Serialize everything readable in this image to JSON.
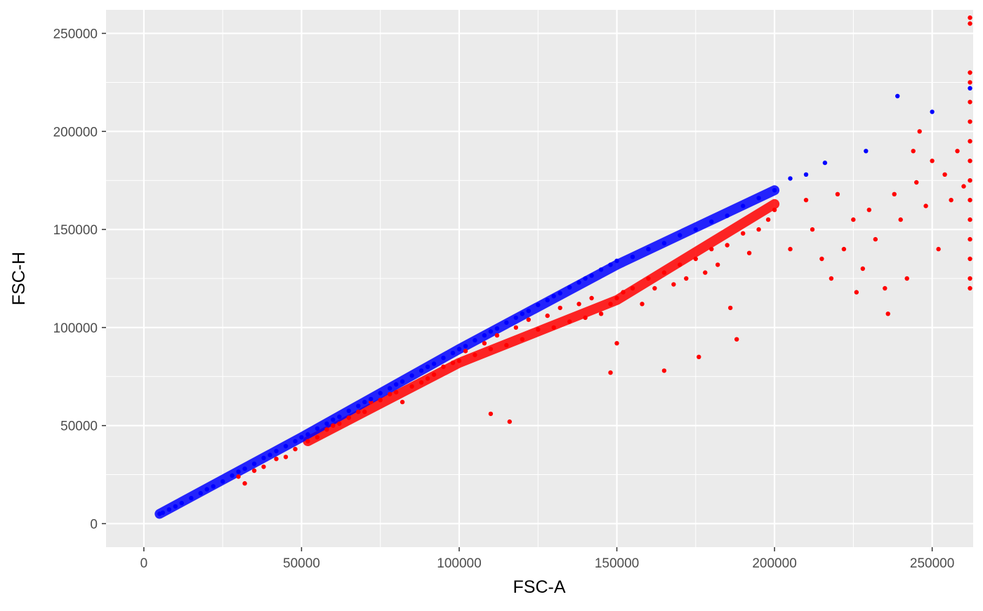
{
  "chart_data": {
    "type": "scatter",
    "title": "",
    "xlabel": "FSC-A",
    "ylabel": "FSC-H",
    "xlim": [
      -12000,
      263000
    ],
    "ylim": [
      -12000,
      262000
    ],
    "x_ticks": [
      0,
      50000,
      100000,
      150000,
      200000,
      250000
    ],
    "y_ticks": [
      0,
      50000,
      100000,
      150000,
      200000,
      250000
    ],
    "x_tick_labels": [
      "0",
      "50000",
      "100000",
      "150000",
      "200000",
      "250000"
    ],
    "y_tick_labels": [
      "0",
      "50000",
      "100000",
      "150000",
      "200000",
      "250000"
    ],
    "grid": true,
    "background": "#EBEBEB",
    "grid_color": "#FFFFFF",
    "legend": "none",
    "series": [
      {
        "color": "#FF0000",
        "points": [
          [
            30000,
            24000
          ],
          [
            32000,
            20500
          ],
          [
            35000,
            27000
          ],
          [
            38000,
            29000
          ],
          [
            42000,
            33000
          ],
          [
            45000,
            34000
          ],
          [
            48000,
            38000
          ],
          [
            52000,
            42000
          ],
          [
            55000,
            44000
          ],
          [
            58000,
            48000
          ],
          [
            60000,
            50000
          ],
          [
            62000,
            51000
          ],
          [
            65000,
            54000
          ],
          [
            68000,
            57000
          ],
          [
            70000,
            57000
          ],
          [
            72000,
            62000
          ],
          [
            75000,
            63000
          ],
          [
            78000,
            66000
          ],
          [
            80000,
            67000
          ],
          [
            82000,
            62000
          ],
          [
            85000,
            70000
          ],
          [
            88000,
            72000
          ],
          [
            90000,
            74000
          ],
          [
            92000,
            76000
          ],
          [
            95000,
            80000
          ],
          [
            98000,
            82000
          ],
          [
            100000,
            83000
          ],
          [
            102000,
            88000
          ],
          [
            105000,
            86000
          ],
          [
            108000,
            92000
          ],
          [
            110000,
            89000
          ],
          [
            110000,
            56000
          ],
          [
            112000,
            96000
          ],
          [
            115000,
            91000
          ],
          [
            116000,
            52000
          ],
          [
            118000,
            100000
          ],
          [
            120000,
            94000
          ],
          [
            122000,
            104000
          ],
          [
            125000,
            99000
          ],
          [
            128000,
            106000
          ],
          [
            130000,
            100000
          ],
          [
            132000,
            110000
          ],
          [
            135000,
            103000
          ],
          [
            138000,
            112000
          ],
          [
            140000,
            105000
          ],
          [
            142000,
            115000
          ],
          [
            145000,
            107000
          ],
          [
            148000,
            112000
          ],
          [
            148000,
            77000
          ],
          [
            150000,
            92000
          ],
          [
            150000,
            115000
          ],
          [
            152000,
            118000
          ],
          [
            155000,
            120000
          ],
          [
            158000,
            112000
          ],
          [
            160000,
            125000
          ],
          [
            162000,
            120000
          ],
          [
            165000,
            128000
          ],
          [
            165000,
            78000
          ],
          [
            168000,
            122000
          ],
          [
            170000,
            132000
          ],
          [
            172000,
            125000
          ],
          [
            175000,
            135000
          ],
          [
            176000,
            85000
          ],
          [
            178000,
            128000
          ],
          [
            180000,
            140000
          ],
          [
            182000,
            132000
          ],
          [
            185000,
            142000
          ],
          [
            186000,
            110000
          ],
          [
            188000,
            94000
          ],
          [
            190000,
            148000
          ],
          [
            192000,
            138000
          ],
          [
            195000,
            150000
          ],
          [
            198000,
            155000
          ],
          [
            200000,
            160000
          ],
          [
            205000,
            140000
          ],
          [
            210000,
            165000
          ],
          [
            212000,
            150000
          ],
          [
            215000,
            135000
          ],
          [
            218000,
            125000
          ],
          [
            220000,
            168000
          ],
          [
            222000,
            140000
          ],
          [
            225000,
            155000
          ],
          [
            226000,
            118000
          ],
          [
            228000,
            130000
          ],
          [
            230000,
            160000
          ],
          [
            232000,
            145000
          ],
          [
            235000,
            120000
          ],
          [
            236000,
            107000
          ],
          [
            238000,
            168000
          ],
          [
            240000,
            155000
          ],
          [
            242000,
            125000
          ],
          [
            244000,
            190000
          ],
          [
            245000,
            174000
          ],
          [
            246000,
            200000
          ],
          [
            248000,
            162000
          ],
          [
            250000,
            185000
          ],
          [
            252000,
            140000
          ],
          [
            254000,
            178000
          ],
          [
            256000,
            165000
          ],
          [
            258000,
            190000
          ],
          [
            260000,
            172000
          ],
          [
            262000,
            258000
          ],
          [
            262000,
            255000
          ],
          [
            262000,
            230000
          ],
          [
            262000,
            225000
          ],
          [
            262000,
            215000
          ],
          [
            262000,
            205000
          ],
          [
            262000,
            195000
          ],
          [
            262000,
            185000
          ],
          [
            262000,
            175000
          ],
          [
            262000,
            165000
          ],
          [
            262000,
            155000
          ],
          [
            262000,
            145000
          ],
          [
            262000,
            135000
          ],
          [
            262000,
            125000
          ],
          [
            262000,
            120000
          ]
        ]
      },
      {
        "color": "#0000FF",
        "points": [
          [
            5000,
            5000
          ],
          [
            6000,
            5600
          ],
          [
            8000,
            7200
          ],
          [
            10000,
            8800
          ],
          [
            12000,
            10500
          ],
          [
            15000,
            13000
          ],
          [
            18000,
            15500
          ],
          [
            20000,
            17500
          ],
          [
            22000,
            19000
          ],
          [
            25000,
            21500
          ],
          [
            28000,
            24500
          ],
          [
            30000,
            26500
          ],
          [
            32000,
            28000
          ],
          [
            35000,
            30500
          ],
          [
            38000,
            33500
          ],
          [
            40000,
            35000
          ],
          [
            42000,
            37000
          ],
          [
            45000,
            39500
          ],
          [
            48000,
            42000
          ],
          [
            50000,
            44000
          ],
          [
            52000,
            45500
          ],
          [
            55000,
            48500
          ],
          [
            58000,
            51000
          ],
          [
            60000,
            53000
          ],
          [
            62000,
            54500
          ],
          [
            65000,
            57500
          ],
          [
            68000,
            60000
          ],
          [
            70000,
            62000
          ],
          [
            72000,
            63500
          ],
          [
            75000,
            66500
          ],
          [
            78000,
            69000
          ],
          [
            80000,
            71000
          ],
          [
            82000,
            72500
          ],
          [
            85000,
            75500
          ],
          [
            88000,
            78000
          ],
          [
            90000,
            80000
          ],
          [
            92000,
            81500
          ],
          [
            95000,
            84500
          ],
          [
            98000,
            87000
          ],
          [
            100000,
            89000
          ],
          [
            102000,
            90500
          ],
          [
            105000,
            93500
          ],
          [
            108000,
            96000
          ],
          [
            110000,
            98000
          ],
          [
            112000,
            99500
          ],
          [
            115000,
            102500
          ],
          [
            118000,
            105000
          ],
          [
            120000,
            107000
          ],
          [
            122000,
            108500
          ],
          [
            125000,
            111500
          ],
          [
            128000,
            114000
          ],
          [
            130000,
            116000
          ],
          [
            132000,
            117500
          ],
          [
            135000,
            120500
          ],
          [
            138000,
            123000
          ],
          [
            140000,
            125000
          ],
          [
            142000,
            126500
          ],
          [
            145000,
            129500
          ],
          [
            148000,
            132000
          ],
          [
            150000,
            134000
          ],
          [
            155000,
            136000
          ],
          [
            160000,
            140000
          ],
          [
            165000,
            143000
          ],
          [
            170000,
            147000
          ],
          [
            175000,
            150000
          ],
          [
            180000,
            154000
          ],
          [
            185000,
            157000
          ],
          [
            190000,
            162000
          ],
          [
            195000,
            166000
          ],
          [
            200000,
            170000
          ],
          [
            205000,
            176000
          ],
          [
            210000,
            178000
          ],
          [
            216000,
            184000
          ],
          [
            229000,
            190000
          ],
          [
            239000,
            218000
          ],
          [
            250000,
            210000
          ],
          [
            262000,
            222000
          ]
        ]
      }
    ]
  }
}
